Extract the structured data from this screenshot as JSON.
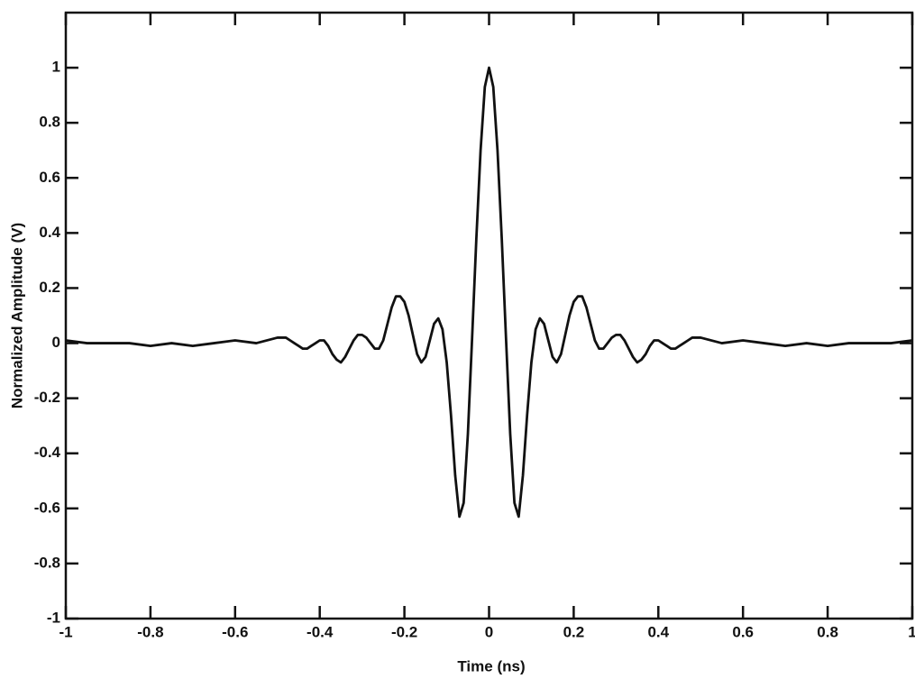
{
  "chart_data": {
    "type": "line",
    "xlabel": "Time (ns)",
    "ylabel": "Normalized Amplitude (V)",
    "color": "#111111",
    "xlim": [
      -1,
      1
    ],
    "ylim": [
      -1,
      1.2
    ],
    "xticks": [
      -1,
      -0.8,
      -0.6,
      -0.4,
      -0.2,
      0,
      0.2,
      0.4,
      0.6,
      0.8,
      1
    ],
    "yticks": [
      -1,
      -0.8,
      -0.6,
      -0.4,
      -0.2,
      0,
      0.2,
      0.4,
      0.6,
      0.8,
      1
    ],
    "x": [
      -1,
      -0.95,
      -0.9,
      -0.85,
      -0.8,
      -0.75,
      -0.7,
      -0.65,
      -0.6,
      -0.55,
      -0.5,
      -0.49,
      -0.48,
      -0.47,
      -0.46,
      -0.45,
      -0.44,
      -0.43,
      -0.42,
      -0.41,
      -0.4,
      -0.39,
      -0.38,
      -0.37,
      -0.36,
      -0.35,
      -0.34,
      -0.33,
      -0.32,
      -0.31,
      -0.3,
      -0.29,
      -0.28,
      -0.27,
      -0.26,
      -0.25,
      -0.24,
      -0.23,
      -0.22,
      -0.21,
      -0.2,
      -0.19,
      -0.18,
      -0.17,
      -0.16,
      -0.15,
      -0.14,
      -0.13,
      -0.12,
      -0.11,
      -0.1,
      -0.09,
      -0.08,
      -0.07,
      -0.06,
      -0.05,
      -0.04,
      -0.03,
      -0.02,
      -0.01,
      0,
      0.01,
      0.02,
      0.03,
      0.04,
      0.05,
      0.06,
      0.07,
      0.08,
      0.09,
      0.1,
      0.11,
      0.12,
      0.13,
      0.14,
      0.15,
      0.16,
      0.17,
      0.18,
      0.19,
      0.2,
      0.21,
      0.22,
      0.23,
      0.24,
      0.25,
      0.26,
      0.27,
      0.28,
      0.29,
      0.3,
      0.31,
      0.32,
      0.33,
      0.34,
      0.35,
      0.36,
      0.37,
      0.38,
      0.39,
      0.4,
      0.41,
      0.42,
      0.43,
      0.44,
      0.45,
      0.46,
      0.47,
      0.48,
      0.49,
      0.5,
      0.55,
      0.6,
      0.65,
      0.7,
      0.75,
      0.8,
      0.85,
      0.9,
      0.95,
      1
    ],
    "values": [
      0.01,
      0.0,
      0.0,
      0.0,
      -0.01,
      0.0,
      -0.01,
      0.0,
      0.01,
      0.0,
      0.02,
      0.02,
      0.02,
      0.01,
      0.0,
      -0.01,
      -0.02,
      -0.02,
      -0.01,
      0.0,
      0.01,
      0.01,
      -0.01,
      -0.04,
      -0.06,
      -0.07,
      -0.05,
      -0.02,
      0.01,
      0.03,
      0.03,
      0.02,
      0.0,
      -0.02,
      -0.02,
      0.01,
      0.07,
      0.13,
      0.17,
      0.17,
      0.15,
      0.1,
      0.03,
      -0.04,
      -0.07,
      -0.05,
      0.01,
      0.07,
      0.09,
      0.05,
      -0.07,
      -0.26,
      -0.48,
      -0.63,
      -0.58,
      -0.33,
      0.02,
      0.38,
      0.7,
      0.93,
      1.0,
      0.93,
      0.7,
      0.38,
      0.02,
      -0.33,
      -0.58,
      -0.63,
      -0.48,
      -0.26,
      -0.07,
      0.05,
      0.09,
      0.07,
      0.01,
      -0.05,
      -0.07,
      -0.04,
      0.03,
      0.1,
      0.15,
      0.17,
      0.17,
      0.13,
      0.07,
      0.01,
      -0.02,
      -0.02,
      0.0,
      0.02,
      0.03,
      0.03,
      0.01,
      -0.02,
      -0.05,
      -0.07,
      -0.06,
      -0.04,
      -0.01,
      0.01,
      0.01,
      0.0,
      -0.01,
      -0.02,
      -0.02,
      -0.01,
      0.0,
      0.01,
      0.02,
      0.02,
      0.02,
      0.0,
      0.01,
      0.0,
      -0.01,
      0.0,
      -0.01,
      0.0,
      0.0,
      0.0,
      0.01
    ]
  }
}
